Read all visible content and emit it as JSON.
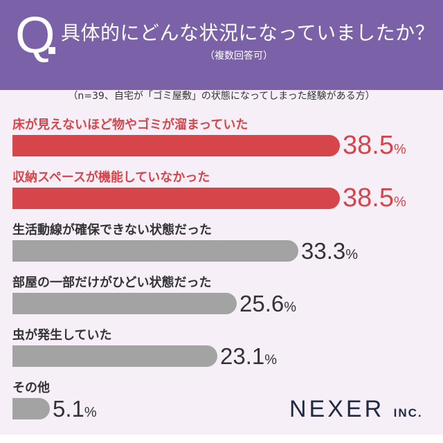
{
  "header": {
    "q_mark": "Q",
    "title": "具体的にどんな状況になっていましたか？",
    "subtitle": "（複数回答可）"
  },
  "note": "（n=39、自宅が「ゴミ屋敷」の状態になってしまった経験がある方）",
  "colors": {
    "header": "#7b62a8",
    "highlight": "#d6454a",
    "normal": "#a3a3a3",
    "background": "#f6eff8"
  },
  "chart_data": {
    "type": "bar",
    "orientation": "horizontal",
    "unit": "%",
    "categories": [
      "床が見えないほど物やゴミが溜まっていた",
      "収納スペースが機能していなかった",
      "生活動線が確保できない状態だった",
      "部屋の一部だけがひどい状態だった",
      "虫が発生していた",
      "その他"
    ],
    "values": [
      38.5,
      38.5,
      33.3,
      25.6,
      23.1,
      5.1
    ],
    "value_labels": [
      "38.5",
      "38.5",
      "33.3",
      "25.6",
      "23.1",
      "5.1"
    ],
    "highlighted": [
      true,
      true,
      false,
      false,
      false,
      false
    ]
  },
  "logo": {
    "name": "NEXER",
    "suffix": "INC."
  }
}
